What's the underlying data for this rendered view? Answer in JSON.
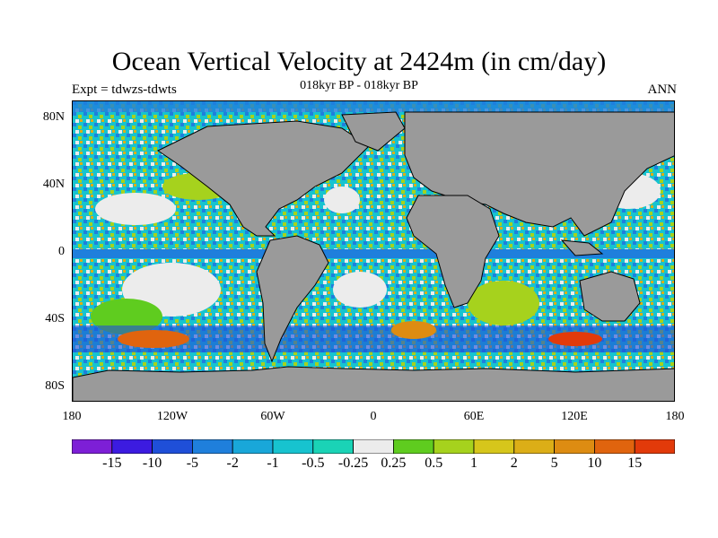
{
  "title": "Ocean Vertical Velocity at 2424m (in cm/day)",
  "expt": "Expt = tdwzs-tdwts",
  "subtitle": "018kyr BP - 018kyr BP",
  "season": "ANN",
  "lat_labels": [
    "80N",
    "40N",
    "0",
    "40S",
    "80S"
  ],
  "lon_labels": [
    "180",
    "120W",
    "60W",
    "0",
    "60E",
    "120E",
    "180"
  ],
  "colorbar": {
    "colors": [
      "#7d1fd6",
      "#3c1be0",
      "#1f4fd8",
      "#1f7fdc",
      "#19a7d9",
      "#17c3cf",
      "#1ad3b6",
      "#ececec",
      "#5fcc1f",
      "#a6d21d",
      "#d6c61b",
      "#dcae17",
      "#dd8c12",
      "#e0640e",
      "#e23a0a"
    ],
    "labels": [
      "-15",
      "-10",
      "-5",
      "-2",
      "-1",
      "-0.5",
      "-0.25",
      "0.25",
      "0.5",
      "1",
      "2",
      "5",
      "10",
      "15"
    ]
  },
  "colors": {
    "land": "#9a9a9a",
    "coast": "#000000"
  }
}
